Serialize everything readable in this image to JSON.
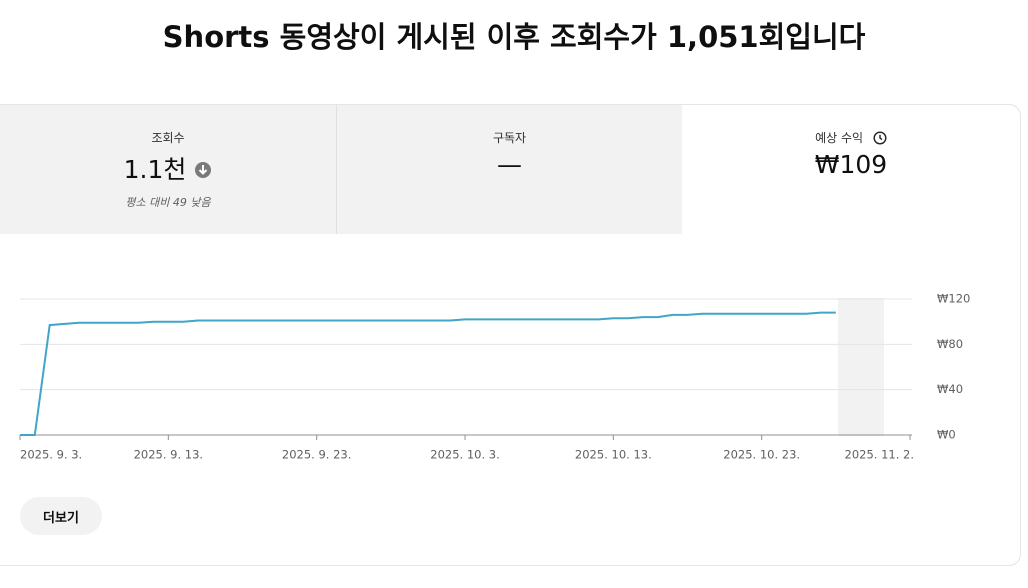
{
  "header": {
    "title": "Shorts 동영상이 게시된 이후 조회수가 1,051회입니다"
  },
  "cards": [
    {
      "label": "조회수",
      "value": "1.1천",
      "note": "평소 대비 49 낮음"
    },
    {
      "label": "구독자",
      "value": "—"
    },
    {
      "label": "예상 수익",
      "value": "₩109"
    }
  ],
  "chart_data": {
    "type": "line",
    "color": "#41a5c9",
    "x": [
      "2025-09-03",
      "2025-09-04",
      "2025-09-05",
      "2025-09-06",
      "2025-09-07",
      "2025-09-08",
      "2025-09-09",
      "2025-09-10",
      "2025-09-11",
      "2025-09-12",
      "2025-09-13",
      "2025-09-14",
      "2025-09-15",
      "2025-09-16",
      "2025-09-17",
      "2025-09-18",
      "2025-09-19",
      "2025-09-20",
      "2025-09-21",
      "2025-09-22",
      "2025-09-23",
      "2025-09-24",
      "2025-09-25",
      "2025-09-26",
      "2025-09-27",
      "2025-09-28",
      "2025-09-29",
      "2025-09-30",
      "2025-10-01",
      "2025-10-02",
      "2025-10-03",
      "2025-10-04",
      "2025-10-05",
      "2025-10-06",
      "2025-10-07",
      "2025-10-08",
      "2025-10-09",
      "2025-10-10",
      "2025-10-11",
      "2025-10-12",
      "2025-10-13",
      "2025-10-14",
      "2025-10-15",
      "2025-10-16",
      "2025-10-17",
      "2025-10-18",
      "2025-10-19",
      "2025-10-20",
      "2025-10-21",
      "2025-10-22",
      "2025-10-23",
      "2025-10-24",
      "2025-10-25",
      "2025-10-26",
      "2025-10-27",
      "2025-10-28"
    ],
    "values": [
      0,
      0,
      97,
      98,
      99,
      99,
      99,
      99,
      99,
      100,
      100,
      100,
      101,
      101,
      101,
      101,
      101,
      101,
      101,
      101,
      101,
      101,
      101,
      101,
      101,
      101,
      101,
      101,
      101,
      101,
      102,
      102,
      102,
      102,
      102,
      102,
      102,
      102,
      102,
      102,
      103,
      103,
      104,
      104,
      106,
      106,
      107,
      107,
      107,
      107,
      107,
      107,
      107,
      107,
      108,
      108
    ],
    "xlim": [
      "2025-09-03",
      "2025-11-02"
    ],
    "xticks": [
      {
        "value": "2025-09-03",
        "label": "2025. 9. 3."
      },
      {
        "value": "2025-09-13",
        "label": "2025. 9. 13."
      },
      {
        "value": "2025-09-23",
        "label": "2025. 9. 23."
      },
      {
        "value": "2025-10-03",
        "label": "2025. 10. 3."
      },
      {
        "value": "2025-10-13",
        "label": "2025. 10. 13."
      },
      {
        "value": "2025-10-23",
        "label": "2025. 10. 23."
      },
      {
        "value": "2025-11-02",
        "label": "2025. 11. 2."
      }
    ],
    "ylim": [
      0,
      120
    ],
    "yticks": [
      {
        "value": 0,
        "label": "₩0"
      },
      {
        "value": 40,
        "label": "₩40"
      },
      {
        "value": 80,
        "label": "₩80"
      },
      {
        "value": 120,
        "label": "₩120"
      }
    ],
    "grid": true
  },
  "button": {
    "label": "더보기"
  }
}
